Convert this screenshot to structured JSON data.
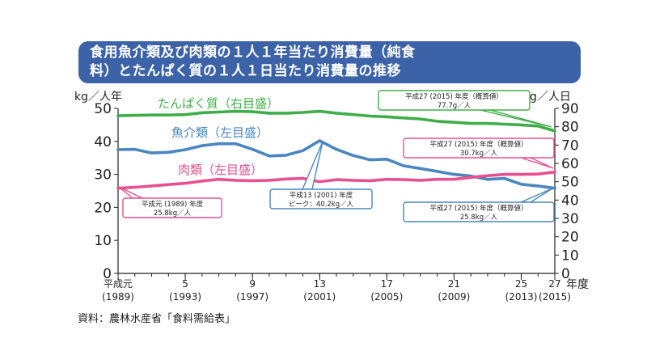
{
  "header": {
    "title_line1": "食用魚介類及び肉類の１人１年当たり消費量（純食",
    "title_line2": "料）とたんぱく質の１人１日当たり消費量の推移"
  },
  "source": "資料：農林水産省「食料需給表」",
  "chart_data": {
    "type": "line",
    "title": "食用魚介類及び肉類の１人１年当たり消費量（純食料）とたんぱく質の１人１日当たり消費量の推移",
    "left_axis": {
      "unit": "kg／人年",
      "ticks": [
        "50",
        "40",
        "30",
        "20",
        "10",
        "0"
      ],
      "range": [
        0,
        50
      ]
    },
    "right_axis": {
      "unit": "g／人日",
      "ticks": [
        "90",
        "80",
        "70",
        "60",
        "50",
        "40",
        "30",
        "20",
        "10",
        "0"
      ],
      "range": [
        0,
        90
      ]
    },
    "x_axis": {
      "unit": "年度",
      "range": [
        1989,
        2015
      ],
      "ticks": [
        {
          "year": 1989,
          "top": "平成元",
          "bottom": "(1989)"
        },
        {
          "year": 1993,
          "top": "5",
          "bottom": "(1993)"
        },
        {
          "year": 1997,
          "top": "9",
          "bottom": "(1997)"
        },
        {
          "year": 2001,
          "top": "13",
          "bottom": "(2001)"
        },
        {
          "year": 2005,
          "top": "17",
          "bottom": "(2005)"
        },
        {
          "year": 2009,
          "top": "21",
          "bottom": "(2009)"
        },
        {
          "year": 2013,
          "top": "25",
          "bottom": "(2013)"
        },
        {
          "year": 2015,
          "top": "27",
          "bottom": "(2015)"
        }
      ]
    },
    "x": [
      1989,
      1990,
      1991,
      1992,
      1993,
      1994,
      1995,
      1996,
      1997,
      1998,
      1999,
      2000,
      2001,
      2002,
      2003,
      2004,
      2005,
      2006,
      2007,
      2008,
      2009,
      2010,
      2011,
      2012,
      2013,
      2014,
      2015
    ],
    "series": [
      {
        "name": "たんぱく質（右目盛）",
        "axis": "right",
        "color": "#3fae49",
        "values": [
          86.0,
          86.2,
          86.4,
          86.4,
          86.6,
          87.6,
          88.0,
          88.4,
          88.2,
          87.4,
          87.4,
          87.8,
          88.4,
          87.4,
          86.6,
          85.8,
          85.4,
          84.8,
          84.2,
          83.0,
          82.4,
          81.8,
          81.8,
          81.4,
          81.0,
          80.4,
          77.7
        ]
      },
      {
        "name": "魚介類（左目盛）",
        "axis": "left",
        "color": "#4a86c0",
        "values": [
          37.5,
          37.6,
          36.5,
          36.7,
          37.5,
          38.7,
          39.3,
          39.3,
          37.6,
          35.6,
          35.8,
          37.2,
          40.2,
          37.6,
          35.7,
          34.4,
          34.6,
          32.6,
          31.8,
          30.9,
          30.0,
          29.5,
          28.5,
          28.8,
          27.0,
          26.5,
          25.8
        ]
      },
      {
        "name": "肉類（左目盛）",
        "axis": "left",
        "color": "#e8508f",
        "values": [
          25.8,
          26.1,
          26.5,
          26.9,
          27.3,
          28.0,
          28.5,
          28.2,
          28.1,
          28.2,
          28.6,
          28.8,
          27.8,
          28.4,
          28.2,
          28.1,
          28.5,
          28.4,
          28.2,
          28.5,
          28.5,
          29.1,
          29.6,
          30.0,
          30.0,
          30.1,
          30.7
        ]
      }
    ],
    "series_labels": [
      {
        "series": 0,
        "text": "たんぱく質（右目盛）"
      },
      {
        "series": 1,
        "text": "魚介類（左目盛）"
      },
      {
        "series": 2,
        "text": "肉類（左目盛）"
      }
    ],
    "annotations": [
      {
        "series": 0,
        "line1": "平成27 (2015) 年度（概算値）",
        "line2": "77.7g／人"
      },
      {
        "series": 2,
        "line1": "平成27 (2015) 年度（概算値）",
        "line2": "30.7kg／人"
      },
      {
        "series": 2,
        "line1": "平成元 (1989) 年度",
        "line2": "25.8kg／人"
      },
      {
        "series": 1,
        "line1": "平成13 (2001) 年度",
        "line2": "ピーク：40.2kg／人"
      },
      {
        "series": 1,
        "line1": "平成27 (2015) 年度（概算値）",
        "line2": "25.8kg／人"
      }
    ]
  }
}
